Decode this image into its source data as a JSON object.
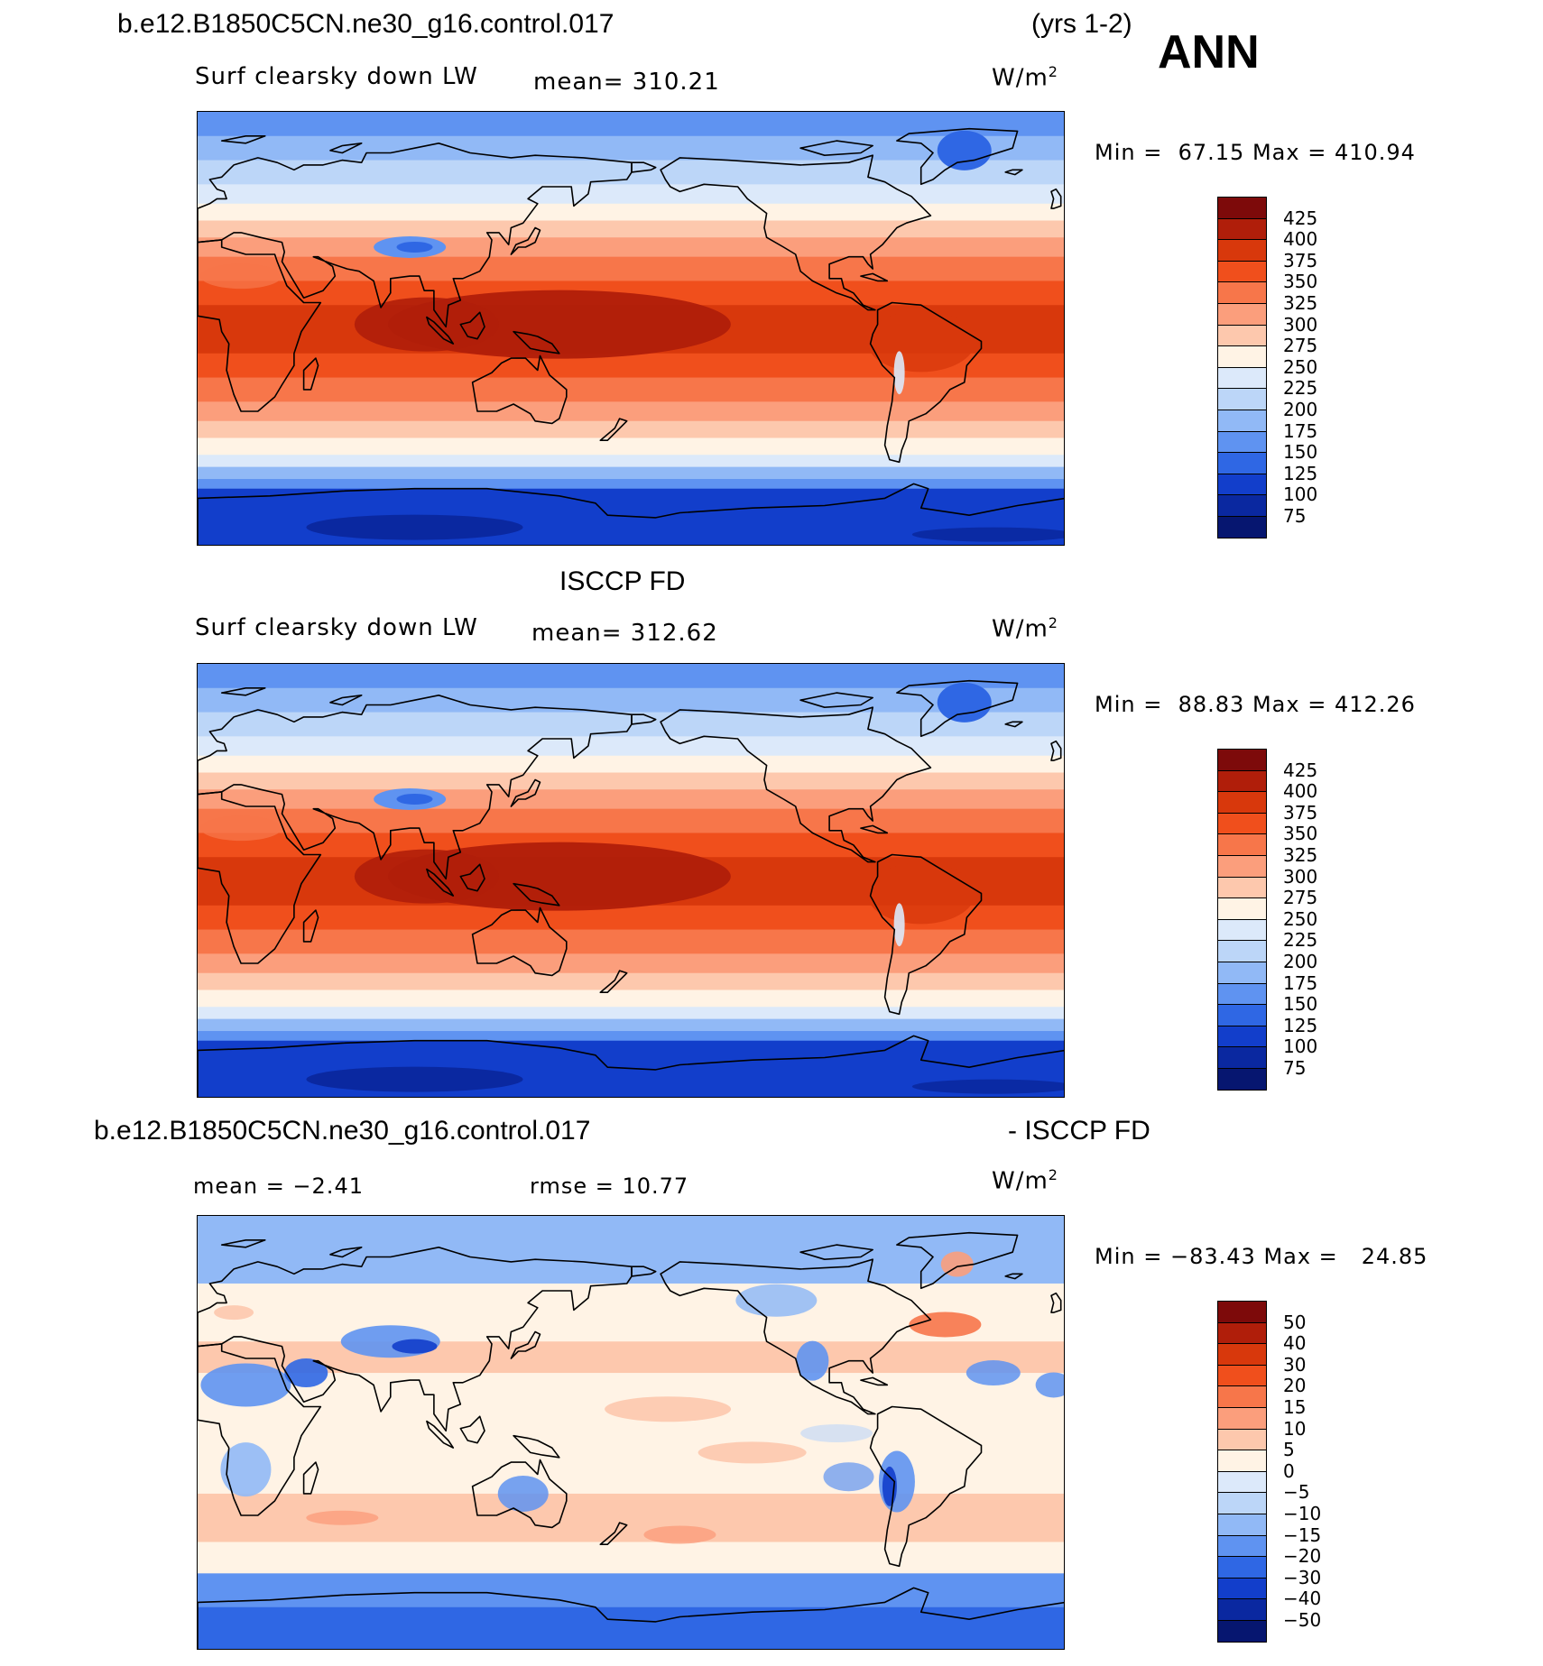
{
  "header": {
    "case_name": "b.e12.B1850C5CN.ne30_g16.control.017",
    "years": "(yrs 1-2)",
    "season": "ANN",
    "obs_name": "ISCCP FD",
    "diff_case_name": "b.e12.B1850C5CN.ne30_g16.control.017",
    "diff_obs_name": "- ISCCP FD"
  },
  "panels": [
    {
      "variable": "Surf clearsky down LW",
      "mean_text": "mean= 310.21",
      "units": "W/m",
      "units_exp": "2",
      "min_label": "Min =",
      "min_value": "67.15",
      "max_label": "Max =",
      "max_value": "410.94",
      "colorbar_levels": [
        "425",
        "400",
        "375",
        "350",
        "325",
        "300",
        "275",
        "250",
        "225",
        "200",
        "175",
        "150",
        "125",
        "100",
        "75"
      ],
      "colorbar_colors": [
        "#7d0a0a",
        "#b01e0a",
        "#d8380c",
        "#f04f1c",
        "#f7764a",
        "#fb9e7c",
        "#fdc8ad",
        "#fff3e5",
        "#dce9fa",
        "#bcd6f8",
        "#91b9f6",
        "#5f93f1",
        "#2f67e4",
        "#123ecb",
        "#0a28a0",
        "#061670"
      ],
      "field_type": "absolute"
    },
    {
      "variable": "Surf clearsky down LW",
      "mean_text": "mean= 312.62",
      "units": "W/m",
      "units_exp": "2",
      "min_label": "Min =",
      "min_value": "88.83",
      "max_label": "Max =",
      "max_value": "412.26",
      "colorbar_levels": [
        "425",
        "400",
        "375",
        "350",
        "325",
        "300",
        "275",
        "250",
        "225",
        "200",
        "175",
        "150",
        "125",
        "100",
        "75"
      ],
      "colorbar_colors": [
        "#7d0a0a",
        "#b01e0a",
        "#d8380c",
        "#f04f1c",
        "#f7764a",
        "#fb9e7c",
        "#fdc8ad",
        "#fff3e5",
        "#dce9fa",
        "#bcd6f8",
        "#91b9f6",
        "#5f93f1",
        "#2f67e4",
        "#123ecb",
        "#0a28a0",
        "#061670"
      ],
      "field_type": "absolute"
    },
    {
      "mean_text": "mean =  −2.41",
      "rmse_text": "rmse =  10.77",
      "units": "W/m",
      "units_exp": "2",
      "min_label": "Min =",
      "min_value": "−83.43",
      "max_label": "Max =",
      "max_value": "24.85",
      "colorbar_levels": [
        "50",
        "40",
        "30",
        "20",
        "15",
        "10",
        "5",
        "0",
        "−5",
        "−10",
        "−15",
        "−20",
        "−30",
        "−40",
        "−50"
      ],
      "colorbar_colors": [
        "#7d0a0a",
        "#b01e0a",
        "#d8380c",
        "#f04f1c",
        "#f7764a",
        "#fb9e7c",
        "#fdc8ad",
        "#fff3e5",
        "#dce9fa",
        "#bcd6f8",
        "#91b9f6",
        "#5f93f1",
        "#2f67e4",
        "#123ecb",
        "#0a28a0",
        "#061670"
      ],
      "field_type": "difference"
    }
  ]
}
